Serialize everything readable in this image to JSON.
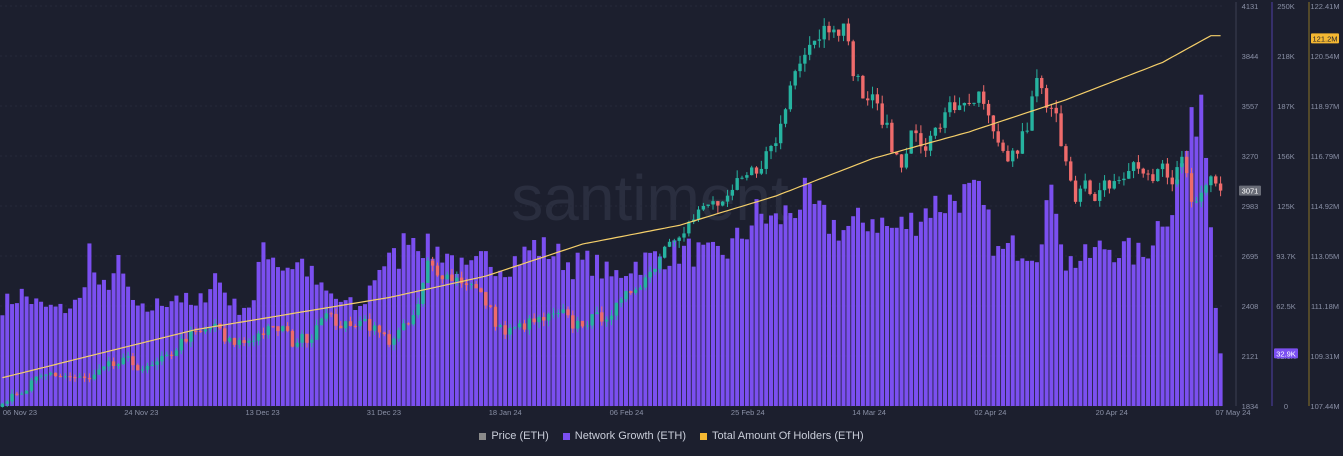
{
  "chart_data": {
    "type": "bar+candlestick+line",
    "watermark": "santiment",
    "x_ticks": [
      "06 Nov 23",
      "24 Nov 23",
      "13 Dec 23",
      "31 Dec 23",
      "18 Jan 24",
      "06 Feb 24",
      "25 Feb 24",
      "14 Mar 24",
      "02 Apr 24",
      "20 Apr 24",
      "07 May 24"
    ],
    "price_axis": {
      "ticks": [
        "4131",
        "3844",
        "3557",
        "3270",
        "2983",
        "2695",
        "2408",
        "2121",
        "1834"
      ],
      "min": 1834,
      "max": 4131,
      "current_label": "3071",
      "current_value": 3071
    },
    "growth_axis": {
      "ticks": [
        "250K",
        "218K",
        "187K",
        "156K",
        "125K",
        "93.7K",
        "62.5K",
        "32.9K",
        "0"
      ],
      "min": 0,
      "max": 250000,
      "current_label": "32.9K",
      "current_value": 32900
    },
    "holders_axis": {
      "ticks": [
        "122.41M",
        "120.54M",
        "118.97M",
        "116.79M",
        "114.92M",
        "113.05M",
        "111.18M",
        "109.31M",
        "107.44M"
      ],
      "min": 107440000,
      "max": 122410000,
      "current_label": "121.2M",
      "current_value": 121200000
    },
    "legend": [
      {
        "name": "Price (ETH)",
        "color": "#8a8a8a"
      },
      {
        "name": "Network Growth (ETH)",
        "color": "#7b4ff0"
      },
      {
        "name": "Total Amount Of Holders (ETH)",
        "color": "#f5b832"
      }
    ],
    "price_anchors": [
      [
        0,
        1870
      ],
      [
        4,
        1890
      ],
      [
        6,
        1960
      ],
      [
        10,
        2020
      ],
      [
        14,
        2000
      ],
      [
        18,
        1980
      ],
      [
        22,
        2060
      ],
      [
        26,
        2090
      ],
      [
        30,
        2040
      ],
      [
        34,
        2110
      ],
      [
        38,
        2230
      ],
      [
        42,
        2260
      ],
      [
        44,
        2310
      ],
      [
        46,
        2200
      ],
      [
        50,
        2200
      ],
      [
        54,
        2260
      ],
      [
        58,
        2280
      ],
      [
        60,
        2200
      ],
      [
        64,
        2240
      ],
      [
        66,
        2370
      ],
      [
        70,
        2300
      ],
      [
        72,
        2280
      ],
      [
        74,
        2350
      ],
      [
        78,
        2250
      ],
      [
        80,
        2210
      ],
      [
        84,
        2300
      ],
      [
        86,
        2400
      ],
      [
        88,
        2650
      ],
      [
        92,
        2580
      ],
      [
        96,
        2550
      ],
      [
        98,
        2500
      ],
      [
        100,
        2430
      ],
      [
        102,
        2320
      ],
      [
        104,
        2250
      ],
      [
        108,
        2300
      ],
      [
        112,
        2330
      ],
      [
        116,
        2360
      ],
      [
        118,
        2300
      ],
      [
        122,
        2330
      ],
      [
        126,
        2370
      ],
      [
        128,
        2420
      ],
      [
        130,
        2500
      ],
      [
        134,
        2600
      ],
      [
        138,
        2800
      ],
      [
        142,
        2880
      ],
      [
        146,
        2990
      ],
      [
        150,
        3000
      ],
      [
        152,
        3100
      ],
      [
        156,
        3200
      ],
      [
        160,
        3350
      ],
      [
        162,
        3550
      ],
      [
        164,
        3800
      ],
      [
        166,
        3900
      ],
      [
        168,
        3950
      ],
      [
        170,
        4000
      ],
      [
        172,
        4050
      ],
      [
        174,
        3990
      ],
      [
        176,
        3780
      ],
      [
        178,
        3620
      ],
      [
        180,
        3580
      ],
      [
        182,
        3500
      ],
      [
        184,
        3320
      ],
      [
        186,
        3210
      ],
      [
        188,
        3450
      ],
      [
        190,
        3300
      ],
      [
        192,
        3350
      ],
      [
        194,
        3450
      ],
      [
        196,
        3600
      ],
      [
        198,
        3520
      ],
      [
        200,
        3550
      ],
      [
        202,
        3600
      ],
      [
        204,
        3470
      ],
      [
        206,
        3300
      ],
      [
        208,
        3260
      ],
      [
        210,
        3300
      ],
      [
        212,
        3450
      ],
      [
        214,
        3700
      ],
      [
        216,
        3550
      ],
      [
        218,
        3480
      ],
      [
        222,
        3050
      ],
      [
        224,
        3100
      ],
      [
        226,
        2980
      ],
      [
        228,
        3100
      ],
      [
        230,
        3120
      ],
      [
        232,
        3150
      ],
      [
        234,
        3210
      ],
      [
        238,
        3150
      ],
      [
        240,
        3200
      ],
      [
        242,
        3130
      ],
      [
        244,
        3260
      ],
      [
        246,
        3000
      ],
      [
        248,
        3050
      ],
      [
        250,
        3140
      ],
      [
        252,
        3070
      ]
    ],
    "growth_anchors": [
      [
        0,
        63000
      ],
      [
        4,
        70000
      ],
      [
        8,
        62000
      ],
      [
        12,
        60000
      ],
      [
        16,
        65000
      ],
      [
        18,
        98000
      ],
      [
        20,
        70000
      ],
      [
        24,
        87000
      ],
      [
        28,
        58000
      ],
      [
        32,
        63000
      ],
      [
        36,
        70000
      ],
      [
        40,
        60000
      ],
      [
        44,
        82000
      ],
      [
        48,
        62000
      ],
      [
        52,
        64000
      ],
      [
        54,
        102000
      ],
      [
        58,
        87000
      ],
      [
        62,
        90000
      ],
      [
        66,
        72000
      ],
      [
        70,
        65000
      ],
      [
        74,
        60000
      ],
      [
        78,
        88000
      ],
      [
        82,
        93000
      ],
      [
        84,
        110000
      ],
      [
        88,
        98000
      ],
      [
        92,
        96000
      ],
      [
        96,
        82000
      ],
      [
        100,
        92000
      ],
      [
        104,
        88000
      ],
      [
        108,
        95000
      ],
      [
        110,
        100000
      ],
      [
        114,
        96000
      ],
      [
        118,
        88000
      ],
      [
        122,
        90000
      ],
      [
        126,
        80000
      ],
      [
        130,
        88000
      ],
      [
        134,
        92000
      ],
      [
        138,
        95000
      ],
      [
        142,
        97000
      ],
      [
        146,
        93000
      ],
      [
        150,
        97000
      ],
      [
        154,
        110000
      ],
      [
        156,
        120000
      ],
      [
        160,
        115000
      ],
      [
        164,
        125000
      ],
      [
        166,
        130000
      ],
      [
        170,
        116000
      ],
      [
        174,
        110000
      ],
      [
        178,
        115000
      ],
      [
        180,
        118000
      ],
      [
        184,
        110000
      ],
      [
        188,
        115000
      ],
      [
        192,
        125000
      ],
      [
        196,
        128000
      ],
      [
        198,
        132000
      ],
      [
        202,
        130000
      ],
      [
        206,
        95000
      ],
      [
        210,
        100000
      ],
      [
        214,
        98000
      ],
      [
        216,
        126000
      ],
      [
        218,
        128000
      ],
      [
        220,
        90000
      ],
      [
        224,
        92000
      ],
      [
        228,
        100000
      ],
      [
        232,
        97000
      ],
      [
        236,
        93000
      ],
      [
        240,
        120000
      ],
      [
        242,
        125000
      ],
      [
        244,
        150000
      ],
      [
        246,
        170000
      ],
      [
        248,
        198000
      ],
      [
        250,
        124000
      ],
      [
        251,
        68000
      ]
    ],
    "holders_anchors": [
      [
        0,
        108500000
      ],
      [
        40,
        110300000
      ],
      [
        80,
        111500000
      ],
      [
        100,
        112300000
      ],
      [
        120,
        113500000
      ],
      [
        140,
        114200000
      ],
      [
        160,
        115300000
      ],
      [
        180,
        116700000
      ],
      [
        200,
        117700000
      ],
      [
        220,
        118900000
      ],
      [
        230,
        119600000
      ],
      [
        240,
        120300000
      ],
      [
        250,
        121300000
      ]
    ]
  }
}
